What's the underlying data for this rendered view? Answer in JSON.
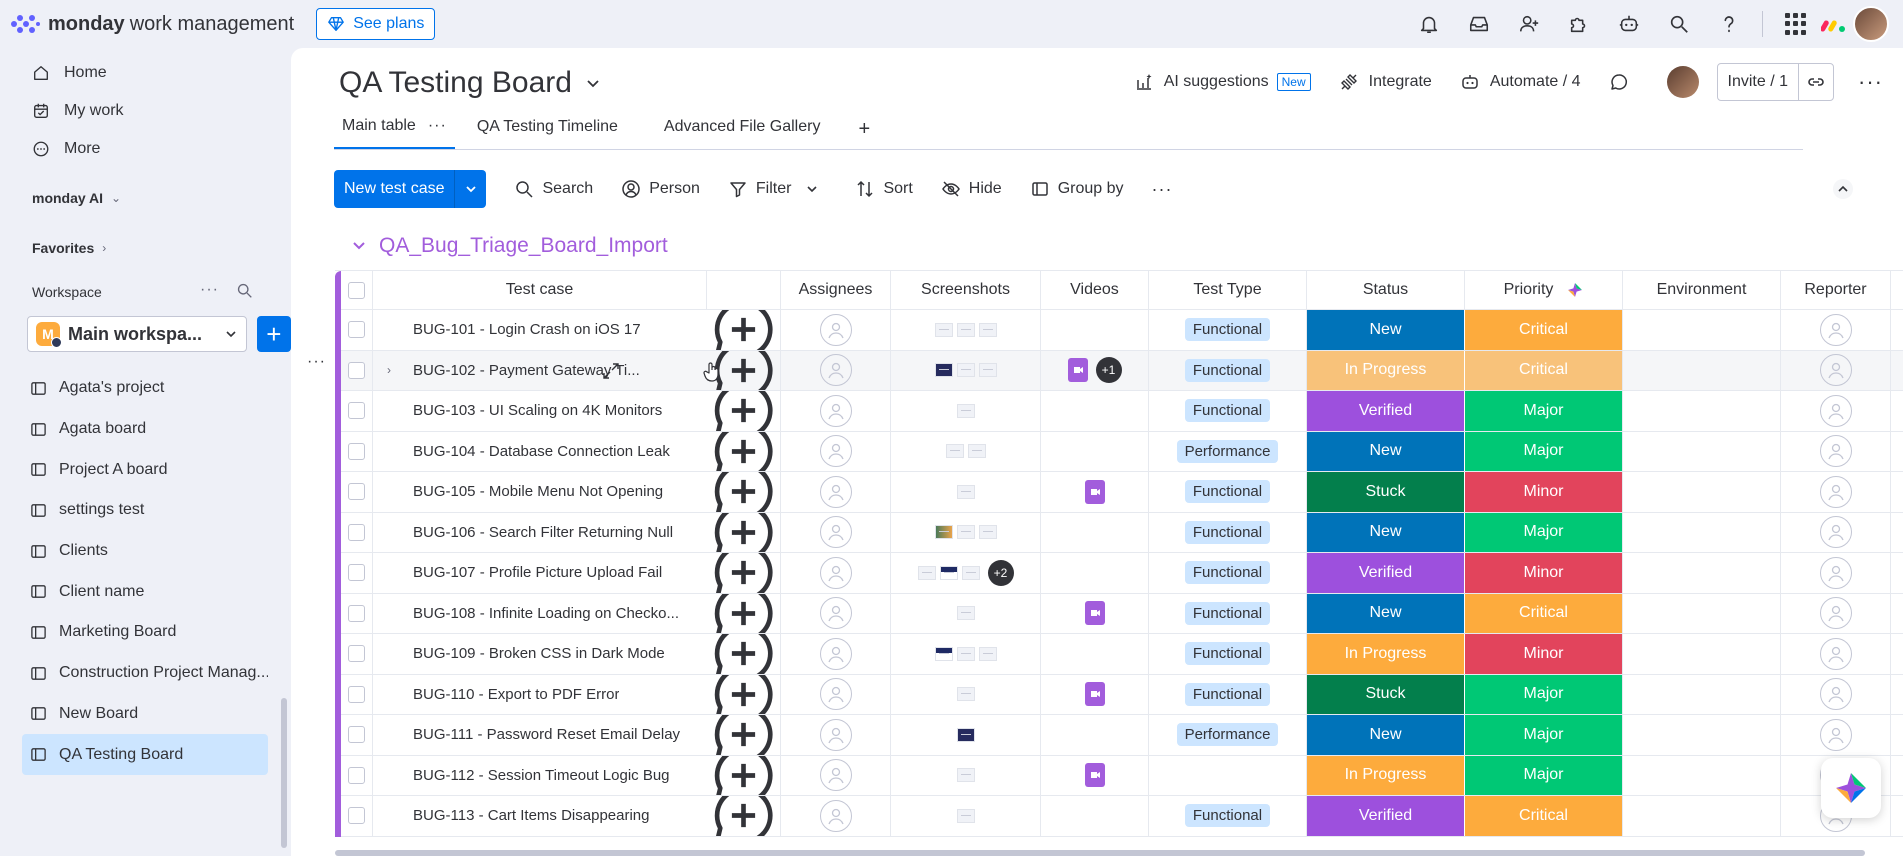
{
  "app": {
    "brand": "monday",
    "brand_sub": "work management",
    "see_plans": "See plans"
  },
  "sidebar": {
    "nav": [
      {
        "label": "Home",
        "icon": "home-icon"
      },
      {
        "label": "My work",
        "icon": "calendar-check-icon"
      },
      {
        "label": "More",
        "icon": "more-circle-icon"
      }
    ],
    "monday_ai": "monday AI",
    "favorites": "Favorites",
    "workspace_label": "Workspace",
    "workspace_badge": "M",
    "workspace_name": "Main workspa...",
    "boards": [
      "Agata's project",
      "Agata board",
      "Project A board",
      "settings test",
      "Clients",
      "Client name",
      "Marketing Board",
      "Construction Project Manag...",
      "New Board",
      "QA Testing Board"
    ]
  },
  "board": {
    "title": "QA Testing Board",
    "actions": {
      "ai": "AI suggestions",
      "ai_badge": "New",
      "integrate": "Integrate",
      "automate": "Automate / 4",
      "invite": "Invite / 1"
    },
    "tabs": [
      "Main table",
      "QA Testing Timeline",
      "Advanced File Gallery"
    ],
    "toolbar": {
      "new_item": "New test case",
      "search": "Search",
      "person": "Person",
      "filter": "Filter",
      "sort": "Sort",
      "hide": "Hide",
      "group_by": "Group by"
    },
    "group_title": "QA_Bug_Triage_Board_Import",
    "columns": [
      "Test case",
      "Assignees",
      "Screenshots",
      "Videos",
      "Test Type",
      "Status",
      "Priority",
      "Environment",
      "Reporter"
    ],
    "rows": [
      {
        "name": "BUG-101 - Login Crash on iOS 17",
        "shots": [
          "light",
          "light",
          "light"
        ],
        "vids": 0,
        "vid_more": "",
        "type": "Functional",
        "status": "New",
        "priority": "Critical"
      },
      {
        "name": "BUG-102 - Payment Gateway Ti...",
        "shots": [
          "dark",
          "light",
          "light"
        ],
        "vids": 1,
        "vid_more": "+1",
        "type": "Functional",
        "status": "In Progress",
        "priority": "Critical"
      },
      {
        "name": "BUG-103 - UI Scaling on 4K Monitors",
        "shots": [
          "light"
        ],
        "vids": 0,
        "vid_more": "",
        "type": "Functional",
        "status": "Verified",
        "priority": "Major"
      },
      {
        "name": "BUG-104 - Database Connection Leak",
        "shots": [
          "light",
          "light"
        ],
        "vids": 0,
        "vid_more": "",
        "type": "Performance",
        "status": "New",
        "priority": "Major"
      },
      {
        "name": "BUG-105 - Mobile Menu Not Opening",
        "shots": [
          "light"
        ],
        "vids": 1,
        "vid_more": "",
        "type": "Functional",
        "status": "Stuck",
        "priority": "Minor"
      },
      {
        "name": "BUG-106 - Search Filter Returning Null",
        "shots": [
          "img",
          "light",
          "light"
        ],
        "vids": 0,
        "vid_more": "",
        "type": "Functional",
        "status": "New",
        "priority": "Major"
      },
      {
        "name": "BUG-107 - Profile Picture Upload Fail",
        "shots": [
          "light",
          "blue",
          "light"
        ],
        "shots_more": "+2",
        "vids": 0,
        "vid_more": "",
        "type": "Functional",
        "status": "Verified",
        "priority": "Minor"
      },
      {
        "name": "BUG-108 - Infinite Loading on Checko...",
        "shots": [
          "light"
        ],
        "vids": 1,
        "vid_more": "",
        "type": "Functional",
        "status": "New",
        "priority": "Critical"
      },
      {
        "name": "BUG-109 - Broken CSS in Dark Mode",
        "shots": [
          "blue",
          "light",
          "light"
        ],
        "vids": 0,
        "vid_more": "",
        "type": "Functional",
        "status": "In Progress",
        "priority": "Minor"
      },
      {
        "name": "BUG-110 - Export to PDF Error",
        "shots": [
          "light"
        ],
        "vids": 1,
        "vid_more": "",
        "type": "Functional",
        "status": "Stuck",
        "priority": "Major"
      },
      {
        "name": "BUG-111 - Password Reset Email Delay",
        "shots": [
          "dark"
        ],
        "vids": 0,
        "vid_more": "",
        "type": "Performance",
        "status": "New",
        "priority": "Major"
      },
      {
        "name": "BUG-112 - Session Timeout Logic Bug",
        "shots": [
          "light"
        ],
        "vids": 1,
        "vid_more": "",
        "type": "",
        "status": "In Progress",
        "priority": "Major"
      },
      {
        "name": "BUG-113 - Cart Items Disappearing",
        "shots": [
          "light"
        ],
        "vids": 0,
        "vid_more": "",
        "type": "Functional",
        "status": "Verified",
        "priority": "Critical"
      }
    ]
  },
  "colors": {
    "accent": "#0073ea",
    "group": "#a25ddc",
    "status": {
      "New": "#0073b9",
      "In Progress": "#fdab3d",
      "Verified": "#9d50dd",
      "Stuck": "#037f4c"
    },
    "status_hover": {
      "In Progress": "#f8c27a"
    },
    "priority": {
      "Critical": "#fdab3d",
      "Major": "#00c875",
      "Minor": "#e2445c"
    },
    "priority_hover": {
      "Critical": "#f8c27a"
    }
  }
}
